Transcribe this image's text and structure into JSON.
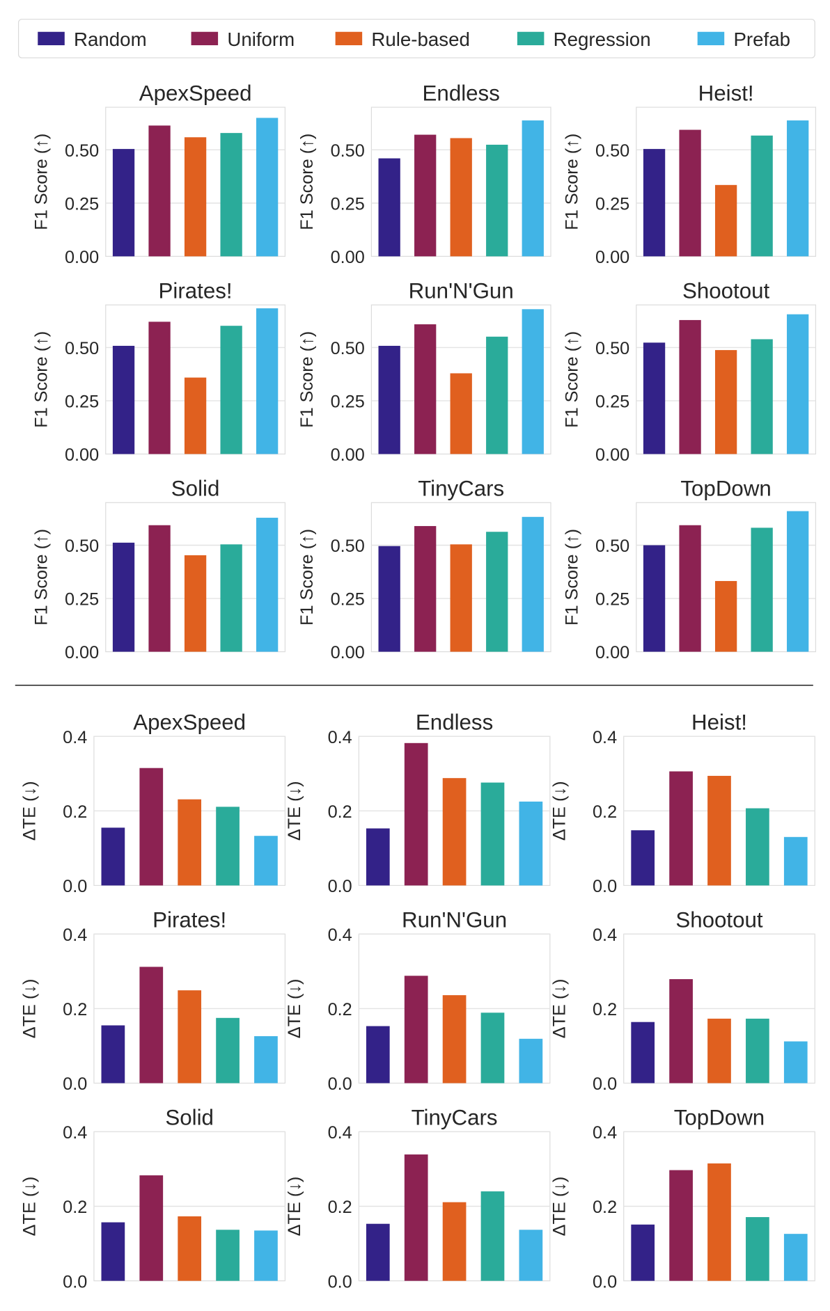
{
  "legend": {
    "placement": "top",
    "items": [
      {
        "label": "Random",
        "color": "#332288"
      },
      {
        "label": "Uniform",
        "color": "#8c2252"
      },
      {
        "label": "Rule-based",
        "color": "#e0601f"
      },
      {
        "label": "Regression",
        "color": "#2aab9a"
      },
      {
        "label": "Prefab",
        "color": "#41b4e6"
      }
    ]
  },
  "chart_data": [
    {
      "type": "bar",
      "section": "top",
      "ylabel": "F1 Score (↑)",
      "ylim": [
        0,
        0.7
      ],
      "yticks": [
        "0.00",
        "0.25",
        "0.50"
      ],
      "ytick_values": [
        0,
        0.25,
        0.5
      ],
      "grid": true,
      "categories": [
        "Random",
        "Uniform",
        "Rule-based",
        "Regression",
        "Prefab"
      ],
      "panels": [
        {
          "title": "ApexSpeed",
          "values": [
            0.504,
            0.614,
            0.559,
            0.579,
            0.65
          ]
        },
        {
          "title": "Endless",
          "values": [
            0.46,
            0.571,
            0.555,
            0.524,
            0.638
          ]
        },
        {
          "title": "Heist!",
          "values": [
            0.504,
            0.594,
            0.335,
            0.567,
            0.638
          ]
        },
        {
          "title": "Pirates!",
          "values": [
            0.508,
            0.621,
            0.359,
            0.602,
            0.684
          ]
        },
        {
          "title": "Run'N'Gun",
          "values": [
            0.508,
            0.609,
            0.379,
            0.551,
            0.68
          ]
        },
        {
          "title": "Shootout",
          "values": [
            0.523,
            0.629,
            0.488,
            0.539,
            0.656
          ]
        },
        {
          "title": "Solid",
          "values": [
            0.512,
            0.594,
            0.453,
            0.504,
            0.629
          ]
        },
        {
          "title": "TinyCars",
          "values": [
            0.496,
            0.59,
            0.504,
            0.563,
            0.633
          ]
        },
        {
          "title": "TopDown",
          "values": [
            0.5,
            0.594,
            0.332,
            0.582,
            0.66
          ]
        }
      ]
    },
    {
      "type": "bar",
      "section": "bottom",
      "ylabel": "ΔTE (↓)",
      "ylim": [
        0,
        0.4
      ],
      "yticks": [
        "0.0",
        "0.2",
        "0.4"
      ],
      "ytick_values": [
        0,
        0.2,
        0.4
      ],
      "grid": true,
      "categories": [
        "Random",
        "Uniform",
        "Rule-based",
        "Regression",
        "Prefab"
      ],
      "panels": [
        {
          "title": "ApexSpeed",
          "values": [
            0.155,
            0.315,
            0.231,
            0.211,
            0.133
          ]
        },
        {
          "title": "Endless",
          "values": [
            0.153,
            0.382,
            0.288,
            0.276,
            0.225
          ]
        },
        {
          "title": "Heist!",
          "values": [
            0.148,
            0.306,
            0.294,
            0.207,
            0.13
          ]
        },
        {
          "title": "Pirates!",
          "values": [
            0.155,
            0.312,
            0.249,
            0.175,
            0.126
          ]
        },
        {
          "title": "Run'N'Gun",
          "values": [
            0.153,
            0.288,
            0.236,
            0.189,
            0.119
          ]
        },
        {
          "title": "Shootout",
          "values": [
            0.164,
            0.279,
            0.173,
            0.173,
            0.112
          ]
        },
        {
          "title": "Solid",
          "values": [
            0.157,
            0.283,
            0.173,
            0.137,
            0.135
          ]
        },
        {
          "title": "TinyCars",
          "values": [
            0.153,
            0.339,
            0.211,
            0.24,
            0.137
          ]
        },
        {
          "title": "TopDown",
          "values": [
            0.151,
            0.297,
            0.315,
            0.171,
            0.126
          ]
        }
      ]
    }
  ]
}
